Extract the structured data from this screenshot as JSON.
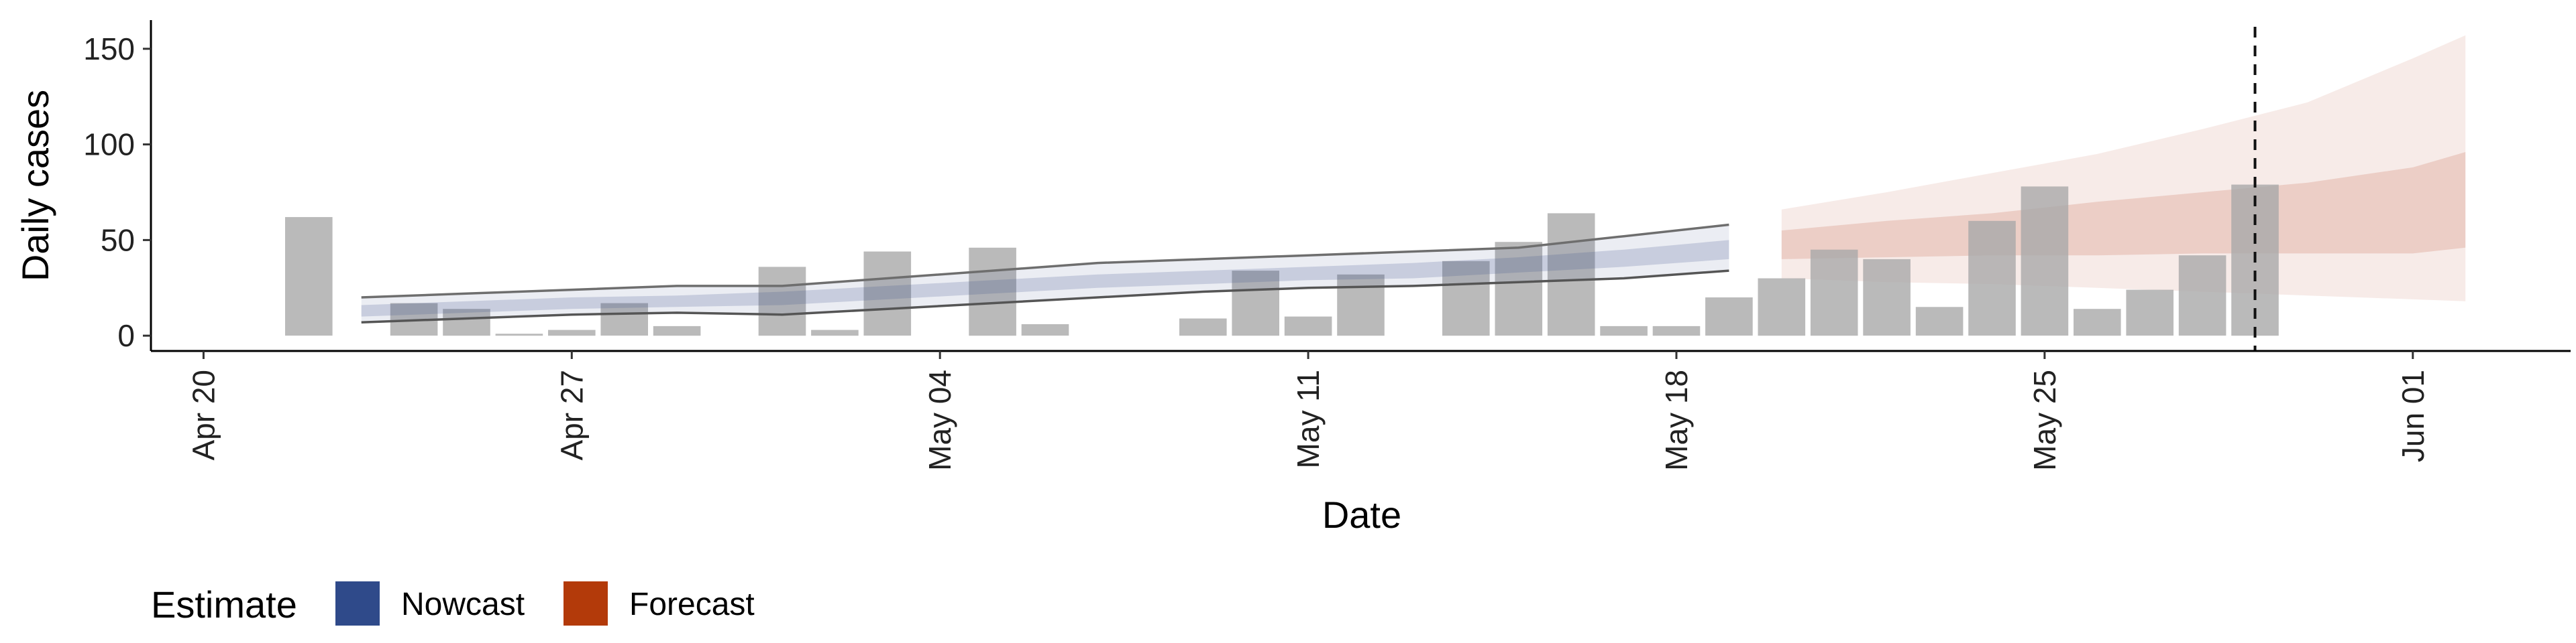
{
  "chart_data": {
    "type": "bar",
    "title": "",
    "xlabel": "Date",
    "ylabel": "Daily cases",
    "ylim": [
      -8,
      165
    ],
    "xlim": [
      "2020-04-19",
      "2020-06-04"
    ],
    "y_ticks": [
      0,
      50,
      100,
      150
    ],
    "x_ticks": [
      {
        "date": "2020-04-20",
        "label": "Apr 20"
      },
      {
        "date": "2020-04-27",
        "label": "Apr 27"
      },
      {
        "date": "2020-05-04",
        "label": "May 04"
      },
      {
        "date": "2020-05-11",
        "label": "May 11"
      },
      {
        "date": "2020-05-18",
        "label": "May 18"
      },
      {
        "date": "2020-05-25",
        "label": "May 25"
      },
      {
        "date": "2020-06-01",
        "label": "Jun 01"
      }
    ],
    "grid": false,
    "legend_position": "bottom-left",
    "vline_date": "2020-05-29",
    "observed": {
      "dates": [
        "2020-04-22",
        "2020-04-23",
        "2020-04-24",
        "2020-04-25",
        "2020-04-26",
        "2020-04-27",
        "2020-04-28",
        "2020-04-29",
        "2020-04-30",
        "2020-05-01",
        "2020-05-02",
        "2020-05-03",
        "2020-05-04",
        "2020-05-05",
        "2020-05-06",
        "2020-05-07",
        "2020-05-08",
        "2020-05-09",
        "2020-05-10",
        "2020-05-11",
        "2020-05-12",
        "2020-05-13",
        "2020-05-14",
        "2020-05-15",
        "2020-05-16",
        "2020-05-17",
        "2020-05-18",
        "2020-05-19",
        "2020-05-20",
        "2020-05-21",
        "2020-05-22",
        "2020-05-23",
        "2020-05-24",
        "2020-05-25",
        "2020-05-26",
        "2020-05-27",
        "2020-05-28",
        "2020-05-29"
      ],
      "values": [
        62,
        0,
        17,
        14,
        1,
        3,
        17,
        5,
        0,
        36,
        3,
        44,
        0,
        46,
        6,
        0,
        0,
        9,
        34,
        10,
        32,
        0,
        39,
        49,
        64,
        5,
        5,
        20,
        30,
        45,
        40,
        15,
        60,
        78,
        14,
        24,
        42,
        79
      ],
      "color": "#a9a9a9"
    },
    "nowcast": {
      "name": "Nowcast",
      "color": "#3a4f8a",
      "dates": [
        "2020-04-23",
        "2020-04-25",
        "2020-04-27",
        "2020-04-29",
        "2020-05-01",
        "2020-05-03",
        "2020-05-05",
        "2020-05-07",
        "2020-05-09",
        "2020-05-11",
        "2020-05-13",
        "2020-05-15",
        "2020-05-17",
        "2020-05-19"
      ],
      "median": [
        13,
        15,
        17,
        18,
        19,
        22,
        25,
        28,
        30,
        32,
        33,
        36,
        40,
        45
      ],
      "inner_low": [
        10,
        12,
        14,
        15,
        16,
        19,
        22,
        25,
        27,
        29,
        30,
        33,
        36,
        40
      ],
      "inner_high": [
        16,
        18,
        20,
        21,
        23,
        26,
        29,
        32,
        34,
        36,
        38,
        41,
        45,
        50
      ],
      "outer_low": [
        7,
        9,
        11,
        12,
        11,
        14,
        17,
        20,
        23,
        25,
        26,
        28,
        30,
        34
      ],
      "outer_high": [
        20,
        22,
        24,
        26,
        26,
        30,
        34,
        38,
        40,
        42,
        44,
        46,
        52,
        58
      ]
    },
    "forecast": {
      "name": "Forecast",
      "color": "#b5391a",
      "dates": [
        "2020-05-20",
        "2020-05-22",
        "2020-05-24",
        "2020-05-26",
        "2020-05-28",
        "2020-05-30",
        "2020-06-01",
        "2020-06-02"
      ],
      "inner_low": [
        40,
        41,
        42,
        42,
        43,
        43,
        43,
        46
      ],
      "inner_high": [
        55,
        60,
        64,
        70,
        75,
        80,
        88,
        96
      ],
      "outer_low": [
        30,
        28,
        27,
        25,
        23,
        21,
        19,
        18
      ],
      "outer_high": [
        66,
        75,
        85,
        95,
        108,
        122,
        145,
        157
      ]
    }
  },
  "legend": {
    "title": "Estimate",
    "items": [
      {
        "label": "Nowcast",
        "color": "#2f4a8a"
      },
      {
        "label": "Forecast",
        "color": "#b33a0a"
      }
    ]
  }
}
